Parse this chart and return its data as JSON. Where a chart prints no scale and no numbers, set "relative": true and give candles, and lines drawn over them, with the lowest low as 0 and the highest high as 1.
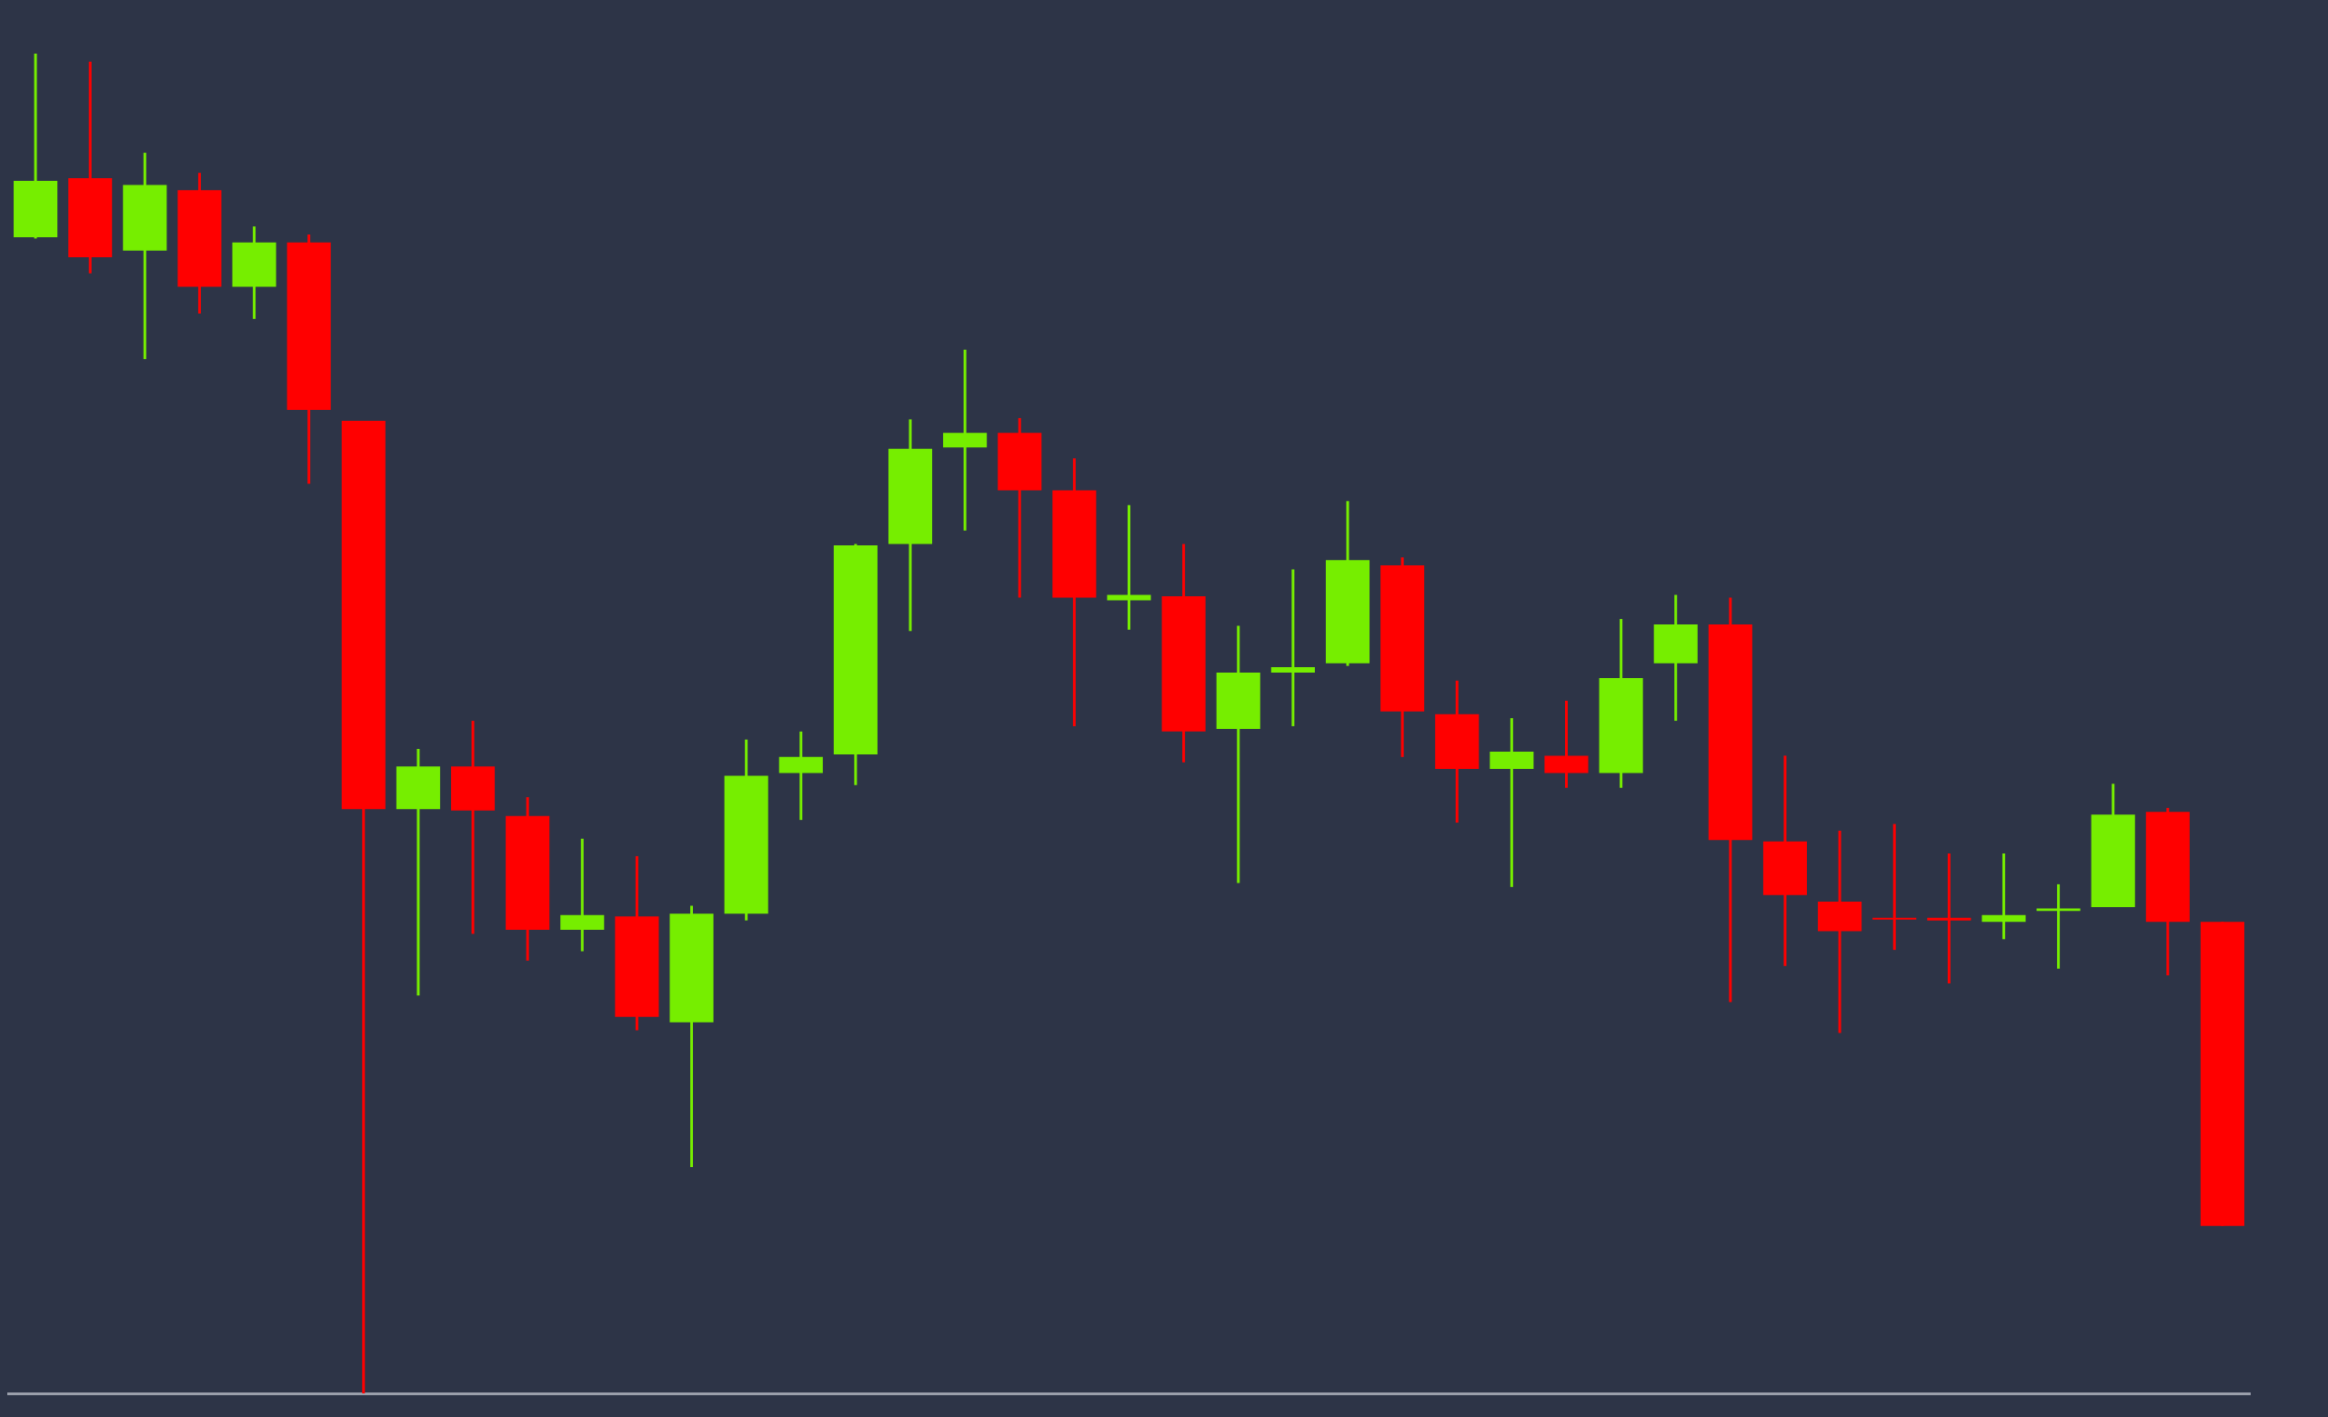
{
  "chart_data": {
    "type": "candlestick",
    "relative": true,
    "categories": [
      null,
      null,
      null,
      null,
      null,
      null,
      null,
      null,
      null,
      null,
      null,
      null,
      null,
      null,
      null,
      null,
      null,
      null,
      null,
      null,
      null,
      null,
      null,
      null,
      null,
      null,
      null,
      null,
      null,
      null,
      null,
      null,
      null,
      null,
      null,
      null,
      null,
      null,
      null,
      null,
      null
    ],
    "ohlc": [
      [
        0.863,
        1,
        0.862,
        0.905
      ],
      [
        0.907,
        0.994,
        0.836,
        0.848
      ],
      [
        0.853,
        0.926,
        0.772,
        0.902
      ],
      [
        0.898,
        0.911,
        0.806,
        0.826
      ],
      [
        0.826,
        0.871,
        0.802,
        0.859
      ],
      [
        0.859,
        0.865,
        0.679,
        0.734
      ],
      [
        0.726,
        0.726,
        0,
        0.436
      ],
      [
        0.436,
        0.481,
        0.297,
        0.468
      ],
      [
        0.468,
        0.502,
        0.343,
        0.435
      ],
      [
        0.431,
        0.445,
        0.323,
        0.346
      ],
      [
        0.346,
        0.414,
        0.33,
        0.357
      ],
      [
        0.356,
        0.401,
        0.271,
        0.281
      ],
      [
        0.277,
        0.364,
        0.169,
        0.358
      ],
      [
        0.358,
        0.488,
        0.353,
        0.461
      ],
      [
        0.463,
        0.494,
        0.428,
        0.475
      ],
      [
        0.477,
        0.634,
        0.454,
        0.633
      ],
      [
        0.634,
        0.727,
        0.569,
        0.705
      ],
      [
        0.706,
        0.779,
        0.644,
        0.717
      ],
      [
        0.717,
        0.728,
        0.594,
        0.674
      ],
      [
        0.674,
        0.698,
        0.498,
        0.594
      ],
      [
        0.592,
        0.663,
        0.57,
        0.596
      ],
      [
        0.595,
        0.634,
        0.471,
        0.494
      ],
      [
        0.496,
        0.573,
        0.381,
        0.538
      ],
      [
        0.538,
        0.615,
        0.498,
        0.542
      ],
      [
        0.545,
        0.666,
        0.543,
        0.622
      ],
      [
        0.618,
        0.624,
        0.475,
        0.509
      ],
      [
        0.507,
        0.532,
        0.426,
        0.466
      ],
      [
        0.466,
        0.504,
        0.378,
        0.479
      ],
      [
        0.476,
        0.517,
        0.452,
        0.463
      ],
      [
        0.463,
        0.578,
        0.452,
        0.534
      ],
      [
        0.545,
        0.596,
        0.502,
        0.574
      ],
      [
        0.574,
        0.594,
        0.292,
        0.413
      ],
      [
        0.412,
        0.476,
        0.319,
        0.372
      ],
      [
        0.367,
        0.42,
        0.269,
        0.345
      ],
      [
        0.355,
        0.425,
        0.331,
        0.354
      ],
      [
        0.355,
        0.403,
        0.306,
        0.353
      ],
      [
        0.352,
        0.403,
        0.339,
        0.357
      ],
      [
        0.36,
        0.38,
        0.317,
        0.362
      ],
      [
        0.363,
        0.455,
        0.363,
        0.432
      ],
      [
        0.434,
        0.437,
        0.312,
        0.352
      ],
      [
        0.352,
        0.352,
        0.125,
        0.125
      ]
    ],
    "colors": [
      "#76ee00",
      "#ff0000",
      "#76ee00",
      "#ff0000",
      "#76ee00",
      "#ff0000",
      "#ff0000",
      "#76ee00",
      "#ff0000",
      "#ff0000",
      "#76ee00",
      "#ff0000",
      "#76ee00",
      "#76ee00",
      "#76ee00",
      "#76ee00",
      "#76ee00",
      "#76ee00",
      "#ff0000",
      "#ff0000",
      "#76ee00",
      "#ff0000",
      "#76ee00",
      "#76ee00",
      "#76ee00",
      "#ff0000",
      "#ff0000",
      "#76ee00",
      "#ff0000",
      "#76ee00",
      "#76ee00",
      "#ff0000",
      "#ff0000",
      "#ff0000",
      "#ff0000",
      "#ff0000",
      "#76ee00",
      "#76ee00",
      "#76ee00",
      "#ff0000",
      "#ff0000"
    ]
  }
}
